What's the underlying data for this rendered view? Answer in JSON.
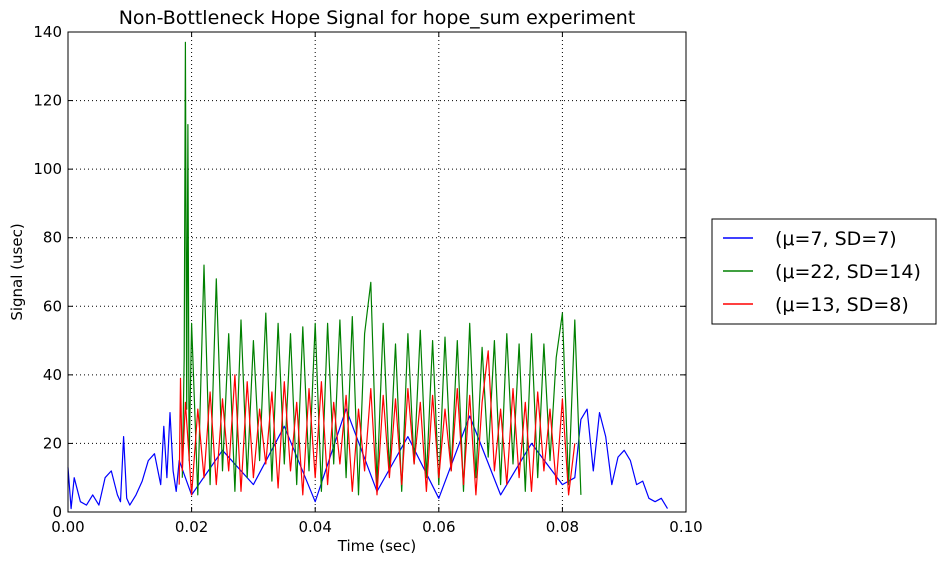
{
  "chart_data": {
    "type": "line",
    "title": "Non-Bottleneck Hope Signal for hope_sum experiment",
    "xlabel": "Time (sec)",
    "ylabel": "Signal (usec)",
    "xlim": [
      0.0,
      0.1
    ],
    "ylim": [
      0,
      140
    ],
    "xticks": [
      "0.00",
      "0.02",
      "0.04",
      "0.06",
      "0.08",
      "0.10"
    ],
    "yticks": [
      "0",
      "20",
      "40",
      "60",
      "80",
      "100",
      "120",
      "140"
    ],
    "grid": true,
    "legend_position": "right, outside plot",
    "series": [
      {
        "name": "(μ=7, SD=7)",
        "color": "#0000ff",
        "x": [
          0.0,
          0.0005,
          0.001,
          0.002,
          0.003,
          0.004,
          0.005,
          0.006,
          0.007,
          0.008,
          0.0085,
          0.009,
          0.0095,
          0.01,
          0.011,
          0.012,
          0.013,
          0.014,
          0.015,
          0.0155,
          0.016,
          0.0165,
          0.017,
          0.0175,
          0.018,
          0.02,
          0.025,
          0.03,
          0.035,
          0.04,
          0.045,
          0.05,
          0.055,
          0.06,
          0.065,
          0.07,
          0.075,
          0.08,
          0.082,
          0.083,
          0.084,
          0.085,
          0.086,
          0.087,
          0.088,
          0.089,
          0.09,
          0.091,
          0.092,
          0.093,
          0.094,
          0.095,
          0.096,
          0.097
        ],
        "y": [
          13,
          1,
          10,
          3,
          2,
          5,
          2,
          10,
          12,
          5,
          3,
          22,
          4,
          2,
          5,
          9,
          15,
          17,
          8,
          25,
          10,
          29,
          12,
          6,
          15,
          5,
          18,
          8,
          25,
          3,
          30,
          6,
          22,
          4,
          28,
          5,
          20,
          8,
          10,
          27,
          30,
          12,
          29,
          22,
          8,
          16,
          18,
          15,
          8,
          9,
          4,
          3,
          4,
          1
        ]
      },
      {
        "name": "(μ=22, SD=14)",
        "color": "#008000",
        "x": [
          0.0185,
          0.0188,
          0.019,
          0.0192,
          0.0194,
          0.0196,
          0.02,
          0.021,
          0.022,
          0.023,
          0.024,
          0.025,
          0.026,
          0.027,
          0.028,
          0.029,
          0.03,
          0.031,
          0.032,
          0.033,
          0.034,
          0.035,
          0.036,
          0.037,
          0.038,
          0.039,
          0.04,
          0.041,
          0.042,
          0.043,
          0.044,
          0.045,
          0.046,
          0.047,
          0.048,
          0.049,
          0.05,
          0.051,
          0.052,
          0.053,
          0.054,
          0.055,
          0.056,
          0.057,
          0.058,
          0.059,
          0.06,
          0.061,
          0.062,
          0.063,
          0.064,
          0.065,
          0.066,
          0.067,
          0.068,
          0.069,
          0.07,
          0.071,
          0.072,
          0.073,
          0.074,
          0.075,
          0.076,
          0.077,
          0.078,
          0.079,
          0.08,
          0.081,
          0.082,
          0.083
        ],
        "y": [
          10,
          45,
          137,
          30,
          113,
          15,
          55,
          5,
          72,
          8,
          68,
          12,
          52,
          6,
          56,
          10,
          50,
          15,
          58,
          9,
          55,
          14,
          52,
          8,
          54,
          12,
          55,
          6,
          55,
          14,
          56,
          10,
          57,
          5,
          52,
          67,
          8,
          55,
          12,
          49,
          6,
          52,
          14,
          53,
          10,
          50,
          8,
          51,
          12,
          50,
          6,
          55,
          10,
          48,
          16,
          50,
          8,
          52,
          14,
          49,
          6,
          52,
          10,
          49,
          15,
          45,
          58,
          8,
          56,
          5
        ]
      },
      {
        "name": "(μ=13, SD=8)",
        "color": "#ff0000",
        "x": [
          0.018,
          0.0182,
          0.0185,
          0.019,
          0.02,
          0.021,
          0.022,
          0.023,
          0.024,
          0.025,
          0.026,
          0.027,
          0.028,
          0.029,
          0.03,
          0.031,
          0.032,
          0.033,
          0.034,
          0.035,
          0.036,
          0.037,
          0.038,
          0.039,
          0.04,
          0.041,
          0.042,
          0.043,
          0.044,
          0.045,
          0.046,
          0.047,
          0.048,
          0.049,
          0.05,
          0.051,
          0.052,
          0.053,
          0.054,
          0.055,
          0.056,
          0.057,
          0.058,
          0.059,
          0.06,
          0.061,
          0.062,
          0.063,
          0.064,
          0.065,
          0.066,
          0.067,
          0.068,
          0.069,
          0.07,
          0.071,
          0.072,
          0.073,
          0.074,
          0.075,
          0.076,
          0.077,
          0.078,
          0.079,
          0.08,
          0.081,
          0.082
        ],
        "y": [
          8,
          39,
          12,
          32,
          5,
          30,
          10,
          35,
          8,
          33,
          12,
          40,
          6,
          38,
          10,
          30,
          14,
          35,
          7,
          38,
          12,
          32,
          5,
          36,
          10,
          38,
          8,
          32,
          14,
          34,
          6,
          30,
          12,
          36,
          5,
          34,
          10,
          33,
          8,
          36,
          14,
          32,
          6,
          34,
          10,
          30,
          12,
          36,
          8,
          34,
          5,
          32,
          47,
          12,
          30,
          8,
          36,
          10,
          32,
          6,
          35,
          12,
          30,
          8,
          33,
          5,
          20
        ]
      }
    ]
  }
}
